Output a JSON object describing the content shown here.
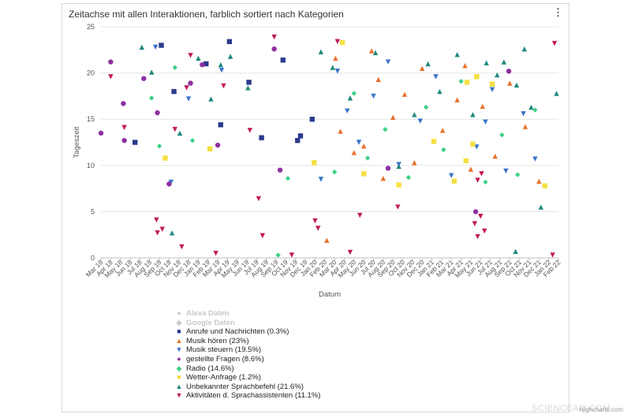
{
  "chart_data": {
    "type": "scatter",
    "title": "Zeitachse mit allen Interaktionen, farblich sortiert nach Kategorien",
    "xlabel": "Datum",
    "ylabel": "Tageszeit",
    "ylim": [
      0,
      25
    ],
    "yticks": [
      0,
      5,
      10,
      15,
      20,
      25
    ],
    "xticks": [
      "Mar 18",
      "Apr 18",
      "May 18",
      "Jun 18",
      "Jul 18",
      "Aug 18",
      "Sep 18",
      "Oct 18",
      "Nov 18",
      "Dec 18",
      "Jan 19",
      "Feb 19",
      "Mar 19",
      "Apr 19",
      "May 19",
      "Jun 19",
      "Jul 19",
      "Aug 19",
      "Sep 19",
      "Oct 19",
      "Nov 19",
      "Dec 19",
      "Jan 20",
      "Feb 20",
      "Mar 20",
      "Apr 20",
      "May 20",
      "Jun 20",
      "Jul 20",
      "Aug 20",
      "Sep 20",
      "Oct 20",
      "Nov 20",
      "Dec 20",
      "Jan 21",
      "Feb 21",
      "Mar 21",
      "Apr 21",
      "May 21",
      "Jun 21",
      "Jul 21",
      "Aug 21",
      "Sep 21",
      "Oct 21",
      "Nov 21",
      "Dec 21",
      "Jan 22",
      "Feb 22"
    ],
    "grid": true,
    "legend_position": "bottom",
    "series": [
      {
        "name": "Alexa Daten",
        "color": "#c8c8c8",
        "symbol": "circle",
        "visible": false,
        "points": []
      },
      {
        "name": "Google Daten",
        "color": "#c8c8c8",
        "symbol": "diamond",
        "visible": false,
        "points": []
      },
      {
        "name": "Anrufe und Nachrichten (0.3%)",
        "color": "#2b3a8c",
        "symbol": "square",
        "visible": true,
        "points": [
          [
            18.7,
            21.4
          ],
          [
            21.7,
            15.0
          ],
          [
            13.2,
            23.4
          ],
          [
            12.3,
            14.4
          ],
          [
            20.2,
            12.7
          ],
          [
            20.5,
            13.2
          ],
          [
            3.5,
            12.5
          ],
          [
            6.2,
            23.0
          ],
          [
            10.8,
            21.0
          ],
          [
            15.2,
            19.0
          ],
          [
            16.5,
            13.0
          ],
          [
            7.5,
            18.0
          ]
        ]
      },
      {
        "name": "Musik hören (23%)",
        "color": "#e8702a",
        "symbol": "triangle",
        "visible": true,
        "points": [
          [
            23.2,
            1.9
          ],
          [
            24.1,
            21.6
          ],
          [
            26.0,
            11.4
          ],
          [
            27.0,
            12.1
          ],
          [
            28.5,
            19.3
          ],
          [
            29.0,
            8.6
          ],
          [
            30.0,
            15.2
          ],
          [
            31.2,
            17.7
          ],
          [
            32.2,
            10.3
          ],
          [
            33.0,
            20.5
          ],
          [
            35.1,
            13.8
          ],
          [
            36.6,
            17.1
          ],
          [
            38.0,
            9.6
          ],
          [
            39.2,
            16.4
          ],
          [
            40.5,
            11.0
          ],
          [
            42.0,
            18.9
          ],
          [
            43.6,
            14.2
          ],
          [
            45.0,
            8.3
          ],
          [
            24.6,
            13.7
          ],
          [
            27.8,
            22.4
          ],
          [
            37.4,
            20.8
          ]
        ]
      },
      {
        "name": "Musik steuern (19.5%)",
        "color": "#3a74c9",
        "symbol": "triangle-down",
        "visible": true,
        "points": [
          [
            5.6,
            22.8
          ],
          [
            7.2,
            8.2
          ],
          [
            9.0,
            17.2
          ],
          [
            12.4,
            20.3
          ],
          [
            22.6,
            8.5
          ],
          [
            24.3,
            20.2
          ],
          [
            26.5,
            12.5
          ],
          [
            28.0,
            17.5
          ],
          [
            30.6,
            10.1
          ],
          [
            32.8,
            14.8
          ],
          [
            34.4,
            19.6
          ],
          [
            36.0,
            8.9
          ],
          [
            38.6,
            12.0
          ],
          [
            40.2,
            18.2
          ],
          [
            41.6,
            9.4
          ],
          [
            43.4,
            15.6
          ],
          [
            44.6,
            10.7
          ],
          [
            25.3,
            15.9
          ],
          [
            29.5,
            21.2
          ],
          [
            39.5,
            14.7
          ]
        ]
      },
      {
        "name": "gestellte Fragen (8.6%)",
        "color": "#8e2fa3",
        "symbol": "circle",
        "visible": true,
        "points": [
          [
            0.0,
            13.5
          ],
          [
            1.0,
            21.2
          ],
          [
            2.3,
            16.7
          ],
          [
            2.4,
            12.7
          ],
          [
            4.4,
            19.4
          ],
          [
            5.8,
            15.7
          ],
          [
            7.0,
            8.0
          ],
          [
            9.2,
            18.9
          ],
          [
            10.4,
            20.9
          ],
          [
            12.0,
            12.2
          ],
          [
            17.8,
            22.6
          ],
          [
            18.4,
            9.5
          ],
          [
            38.5,
            5.0
          ],
          [
            29.5,
            9.7
          ],
          [
            41.9,
            20.2
          ]
        ]
      },
      {
        "name": "Radio (14.6%)",
        "color": "#3fd08a",
        "symbol": "diamond",
        "visible": true,
        "points": [
          [
            5.2,
            17.3
          ],
          [
            6.0,
            12.1
          ],
          [
            7.6,
            20.6
          ],
          [
            9.4,
            12.7
          ],
          [
            18.2,
            0.3
          ],
          [
            19.2,
            8.6
          ],
          [
            24.0,
            9.3
          ],
          [
            26.0,
            17.8
          ],
          [
            27.4,
            10.8
          ],
          [
            29.2,
            13.9
          ],
          [
            31.6,
            8.7
          ],
          [
            33.4,
            16.3
          ],
          [
            35.2,
            11.7
          ],
          [
            37.0,
            19.1
          ],
          [
            39.5,
            8.2
          ],
          [
            41.2,
            13.3
          ],
          [
            44.6,
            16.0
          ],
          [
            42.8,
            9.0
          ]
        ]
      },
      {
        "name": "Wetter-Anfrage (1.2%)",
        "color": "#f4e042",
        "symbol": "square",
        "visible": true,
        "points": [
          [
            24.8,
            23.3
          ],
          [
            21.9,
            10.3
          ],
          [
            27.0,
            9.1
          ],
          [
            30.6,
            7.9
          ],
          [
            34.2,
            12.6
          ],
          [
            37.5,
            10.5
          ],
          [
            37.6,
            19.0
          ],
          [
            38.6,
            19.6
          ],
          [
            38.2,
            12.3
          ],
          [
            36.3,
            8.3
          ],
          [
            40.2,
            18.8
          ],
          [
            45.6,
            7.8
          ],
          [
            6.6,
            10.8
          ],
          [
            11.2,
            11.8
          ]
        ]
      },
      {
        "name": "Unbekannter Sprachbefehl (21.6%)",
        "color": "#1e8a7d",
        "symbol": "triangle",
        "visible": true,
        "points": [
          [
            4.2,
            22.8
          ],
          [
            5.2,
            20.1
          ],
          [
            7.3,
            2.7
          ],
          [
            8.1,
            13.5
          ],
          [
            10.0,
            21.6
          ],
          [
            11.3,
            17.2
          ],
          [
            12.3,
            20.9
          ],
          [
            13.3,
            21.8
          ],
          [
            15.1,
            18.4
          ],
          [
            22.6,
            22.3
          ],
          [
            23.8,
            20.6
          ],
          [
            25.6,
            17.3
          ],
          [
            28.2,
            22.2
          ],
          [
            30.6,
            9.9
          ],
          [
            32.2,
            15.5
          ],
          [
            33.6,
            21.0
          ],
          [
            34.8,
            18.0
          ],
          [
            36.6,
            22.0
          ],
          [
            38.2,
            15.5
          ],
          [
            39.6,
            21.1
          ],
          [
            40.7,
            19.8
          ],
          [
            41.4,
            21.2
          ],
          [
            42.7,
            18.7
          ],
          [
            43.5,
            22.6
          ],
          [
            44.2,
            16.3
          ],
          [
            45.2,
            5.5
          ],
          [
            46.8,
            17.8
          ],
          [
            42.6,
            0.7
          ]
        ]
      },
      {
        "name": "Aktivitäten d. Sprachassistenten (11.1%)",
        "color": "#c2185b",
        "symbol": "triangle-down",
        "visible": true,
        "points": [
          [
            1.0,
            19.6
          ],
          [
            2.4,
            14.1
          ],
          [
            5.7,
            4.1
          ],
          [
            5.8,
            2.7
          ],
          [
            6.3,
            3.1
          ],
          [
            7.6,
            13.9
          ],
          [
            8.3,
            1.2
          ],
          [
            8.8,
            18.4
          ],
          [
            9.2,
            21.9
          ],
          [
            11.8,
            0.5
          ],
          [
            12.6,
            18.6
          ],
          [
            15.3,
            13.8
          ],
          [
            16.2,
            6.4
          ],
          [
            16.6,
            2.4
          ],
          [
            17.8,
            23.9
          ],
          [
            19.6,
            0.3
          ],
          [
            22.0,
            4.0
          ],
          [
            22.3,
            3.2
          ],
          [
            24.3,
            23.4
          ],
          [
            25.6,
            0.6
          ],
          [
            26.6,
            4.6
          ],
          [
            30.5,
            5.5
          ],
          [
            38.4,
            3.7
          ],
          [
            38.7,
            2.3
          ],
          [
            39.0,
            4.5
          ],
          [
            39.4,
            2.9
          ],
          [
            38.7,
            8.4
          ],
          [
            39.1,
            9.1
          ],
          [
            46.6,
            23.2
          ],
          [
            46.4,
            0.3
          ]
        ]
      }
    ]
  },
  "credits": "Highcharts.com",
  "watermark": "SCIENCEAQ.COM"
}
